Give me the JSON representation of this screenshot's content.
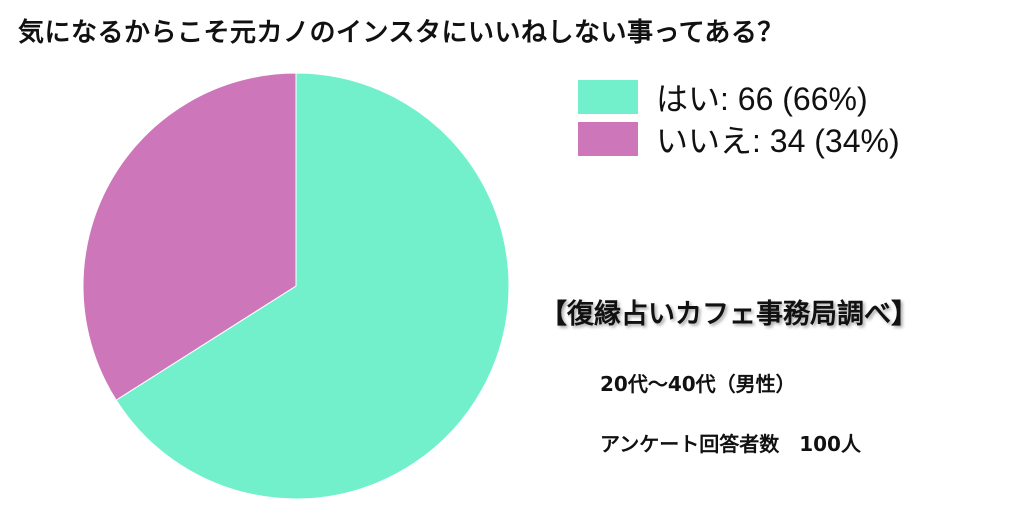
{
  "chart_data": {
    "type": "pie",
    "title": "気になるからこそ元カノのインスタにいいねしない事ってある？",
    "slices": [
      {
        "label": "はい",
        "value": 66,
        "percent": 66,
        "color": "#72f0cc",
        "legend": "はい: 66 (66%)"
      },
      {
        "label": "いいえ",
        "value": 34,
        "percent": 34,
        "color": "#cd76b9",
        "legend": "いいえ: 34 (34%)"
      }
    ],
    "legend_position": "top-right",
    "start": "top",
    "direction": "clockwise"
  },
  "notes": {
    "source": "【復縁占いカフェ事務局調べ】",
    "demographic": "20代〜40代（男性）",
    "sample": "アンケート回答者数　100人"
  }
}
